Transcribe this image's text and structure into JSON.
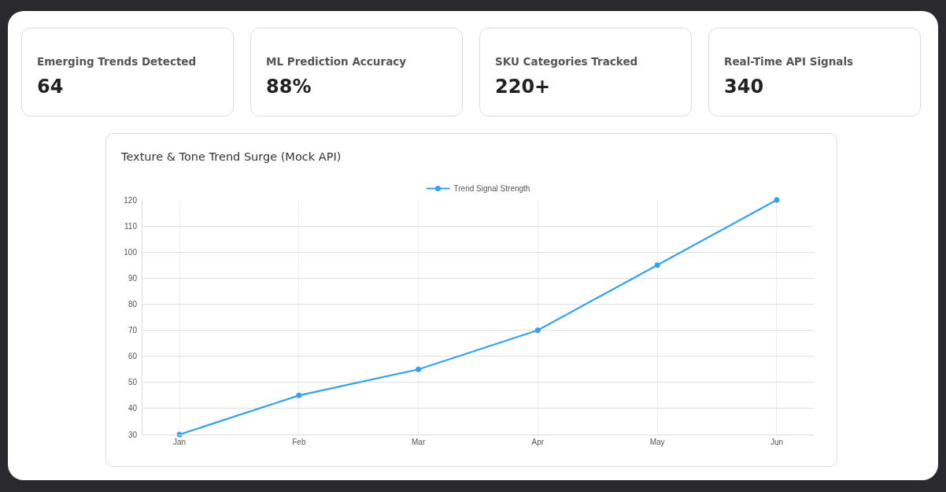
{
  "chart_data": [
    {
      "type": "other",
      "title": "Emerging Trends Detected",
      "annotations": [
        "64"
      ]
    },
    {
      "type": "other",
      "title": "ML Prediction Accuracy",
      "annotations": [
        "88%"
      ]
    },
    {
      "type": "other",
      "title": "SKU Categories Tracked",
      "annotations": [
        "220+"
      ]
    },
    {
      "type": "other",
      "title": "Real-Time API Signals",
      "annotations": [
        "340"
      ]
    },
    {
      "type": "line",
      "title": "Texture & Tone Trend Surge (Mock API)",
      "categories": [
        "Jan",
        "Feb",
        "Mar",
        "Apr",
        "May",
        "Jun"
      ],
      "series": [
        {
          "name": "Trend Signal Strength",
          "color": "#36a2eb",
          "values": [
            30,
            45,
            55,
            70,
            95,
            120
          ]
        }
      ],
      "ylim": [
        30,
        120
      ],
      "yticks": [
        30,
        40,
        50,
        60,
        70,
        80,
        90,
        100,
        110,
        120
      ],
      "grid": true,
      "legend": "top",
      "marker": "circle",
      "line_style": "solid"
    }
  ]
}
